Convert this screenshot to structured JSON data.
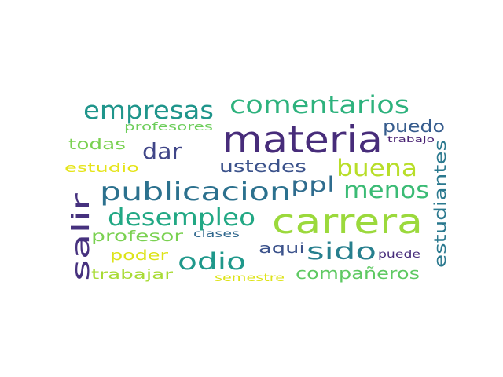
{
  "word_cloud": {
    "words": [
      {
        "text": "materia",
        "color": "#472c7a"
      },
      {
        "text": "carrera",
        "color": "#9bd93c"
      },
      {
        "text": "publicacion",
        "color": "#2c718e"
      },
      {
        "text": "empresas",
        "color": "#1f958b"
      },
      {
        "text": "comentarios",
        "color": "#2db27d"
      },
      {
        "text": "desempleo",
        "color": "#22a884"
      },
      {
        "text": "salir",
        "color": "#46317e"
      },
      {
        "text": "buena",
        "color": "#b8de29"
      },
      {
        "text": "menos",
        "color": "#3bbb75"
      },
      {
        "text": "sido",
        "color": "#277f8e"
      },
      {
        "text": "odio",
        "color": "#1f988b"
      },
      {
        "text": "dar",
        "color": "#404688"
      },
      {
        "text": "ppl",
        "color": "#2f6c8e"
      },
      {
        "text": "ustedes",
        "color": "#3b528b"
      },
      {
        "text": "puedo",
        "color": "#365c8d"
      },
      {
        "text": "estudiantes",
        "color": "#2a788e"
      },
      {
        "text": "compañeros",
        "color": "#5ec962"
      },
      {
        "text": "profesor",
        "color": "#7ad151"
      },
      {
        "text": "todas",
        "color": "#7ad151"
      },
      {
        "text": "aqui",
        "color": "#3b528b"
      },
      {
        "text": "poder",
        "color": "#dde318"
      },
      {
        "text": "trabajar",
        "color": "#a8db34"
      },
      {
        "text": "estudio",
        "color": "#e5e419"
      },
      {
        "text": "profesores",
        "color": "#6ccd5a"
      },
      {
        "text": "clases",
        "color": "#31688e"
      },
      {
        "text": "puede",
        "color": "#472d7b"
      },
      {
        "text": "semestre",
        "color": "#dde318"
      },
      {
        "text": "trabajo",
        "color": "#482173"
      }
    ]
  }
}
